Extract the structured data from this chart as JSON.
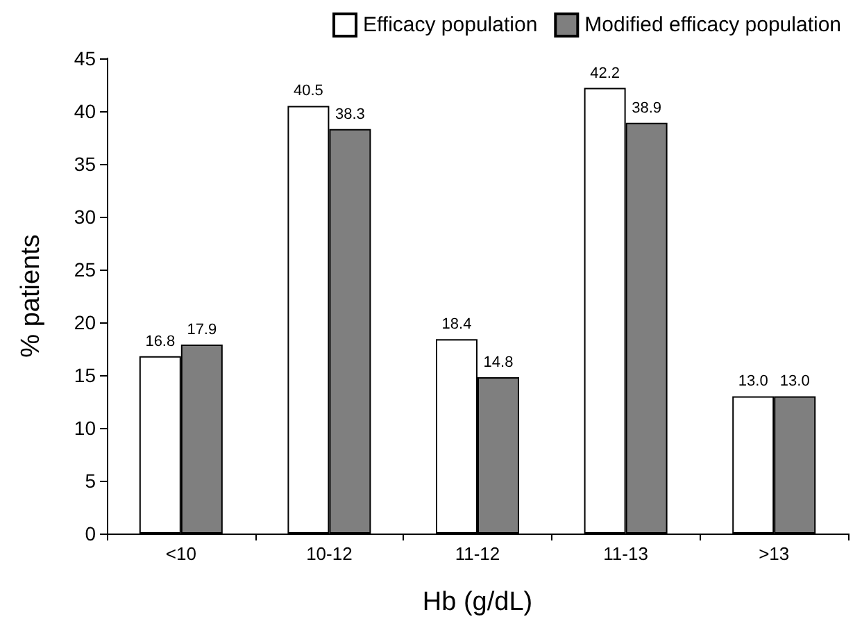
{
  "chart_data": {
    "type": "bar",
    "xlabel": "Hb (g/dL)",
    "ylabel": "% patients",
    "categories": [
      "<10",
      "10-12",
      "11-12",
      "11-13",
      ">13"
    ],
    "series": [
      {
        "name": "Efficacy population",
        "color": "#ffffff",
        "values": [
          16.8,
          40.5,
          18.4,
          42.2,
          13.0
        ],
        "value_labels": [
          "16.8",
          "40.5",
          "18.4",
          "42.2",
          "13.0"
        ]
      },
      {
        "name": "Modified efficacy population",
        "color": "#7f7f7f",
        "values": [
          17.9,
          38.3,
          14.8,
          38.9,
          13.0
        ],
        "value_labels": [
          "17.9",
          "38.3",
          "14.8",
          "38.9",
          "13.0"
        ]
      }
    ],
    "ylim": [
      0,
      45
    ],
    "yticks": [
      0,
      5,
      10,
      15,
      20,
      25,
      30,
      35,
      40,
      45
    ],
    "grid": false,
    "legend": "top right"
  }
}
